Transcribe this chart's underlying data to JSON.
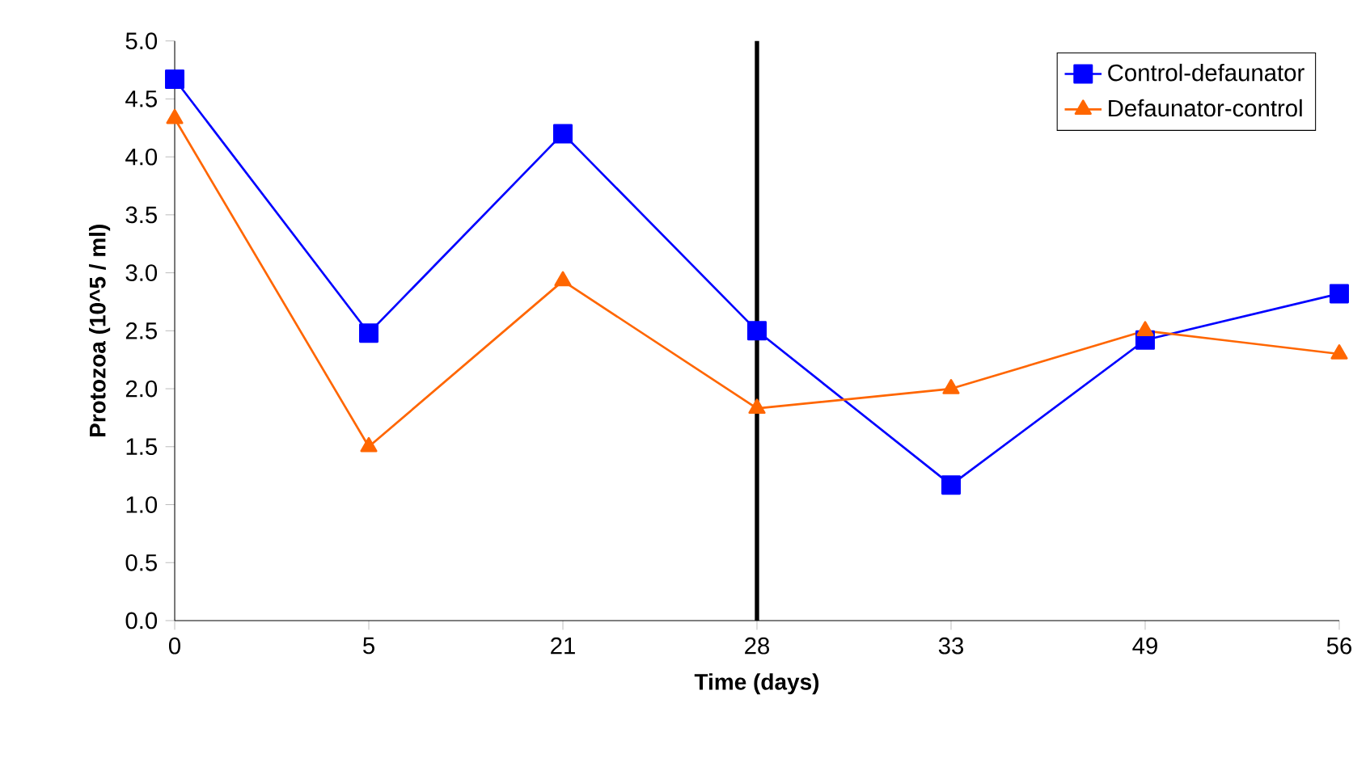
{
  "chart_data": {
    "type": "line",
    "xlabel": "Time (days)",
    "ylabel": "Protozoa (10^5 / ml)",
    "categories": [
      "0",
      "5",
      "21",
      "28",
      "33",
      "49",
      "56"
    ],
    "series": [
      {
        "name": "Control-defaunator",
        "color": "#0000ff",
        "marker": "square",
        "values": [
          4.67,
          2.48,
          4.2,
          2.5,
          1.17,
          2.42,
          2.82
        ]
      },
      {
        "name": "Defaunator-control",
        "color": "#ff6600",
        "marker": "triangle",
        "values": [
          4.33,
          1.5,
          2.93,
          1.83,
          2.0,
          2.5,
          2.3
        ]
      }
    ],
    "ylim": [
      0,
      5
    ],
    "yticks": [
      {
        "value": 0,
        "label": "0.0"
      },
      {
        "value": 0.5,
        "label": "0.5"
      },
      {
        "value": 1,
        "label": "1.0"
      },
      {
        "value": 1.5,
        "label": "1.5"
      },
      {
        "value": 2,
        "label": "2.0"
      },
      {
        "value": 2.5,
        "label": "2.5"
      },
      {
        "value": 3,
        "label": "3.0"
      },
      {
        "value": 3.5,
        "label": "3.5"
      },
      {
        "value": 4,
        "label": "4.0"
      },
      {
        "value": 4.5,
        "label": "4.5"
      },
      {
        "value": 5,
        "label": "5.0"
      }
    ],
    "ref_lines": [
      {
        "axis": "x",
        "value": "28",
        "color": "#000000"
      }
    ],
    "legend": "top right",
    "grid": false
  }
}
